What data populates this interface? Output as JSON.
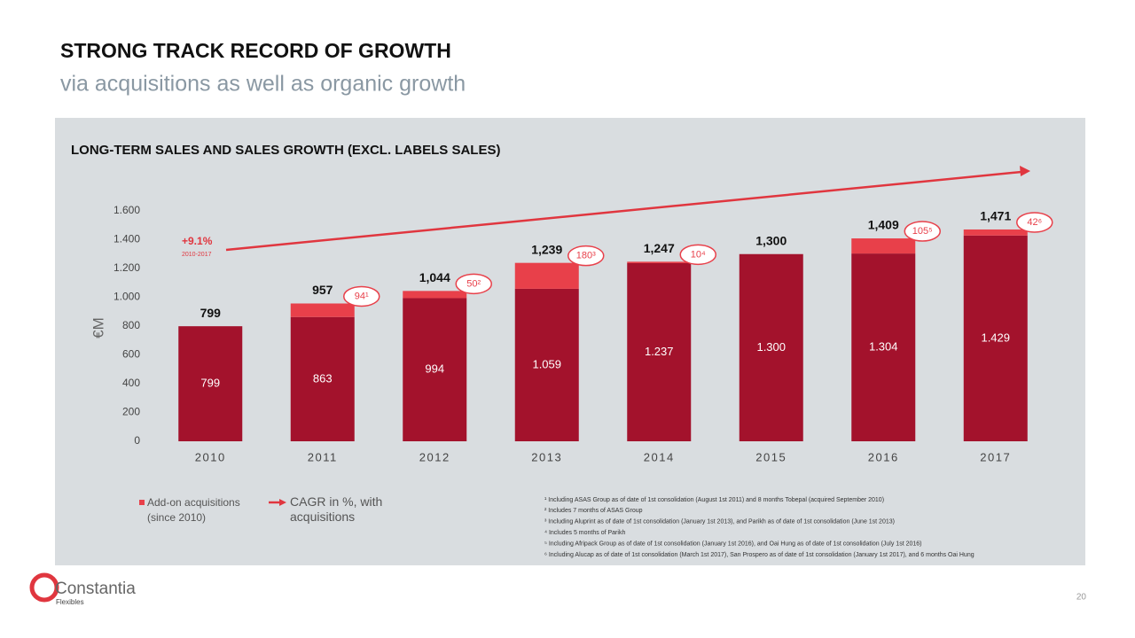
{
  "header": {
    "title": "STRONG TRACK RECORD OF GROWTH",
    "subtitle": "via acquisitions as well as organic growth"
  },
  "chart_data": {
    "type": "stacked-bar",
    "title": "LONG-TERM SALES AND SALES GROWTH (EXCL. LABELS SALES)",
    "y_label": "€M",
    "categories": [
      "2010",
      "2011",
      "2012",
      "2013",
      "2014",
      "2015",
      "2016",
      "2017"
    ],
    "series": [
      {
        "color": "#a3122c",
        "values": [
          799,
          863,
          994,
          1059,
          1237,
          1300,
          1304,
          1429
        ],
        "value_labels": [
          "799",
          "863",
          "994",
          "1.059",
          "1.237",
          "1.300",
          "1.304",
          "1.429"
        ]
      },
      {
        "name": "Add-on acquisitions (since 2010)",
        "color": "#e8404a",
        "values": [
          null,
          94,
          50,
          180,
          10,
          null,
          105,
          42
        ],
        "value_labels": [
          null,
          "94¹",
          "50²",
          "180³",
          "10⁴",
          null,
          "105⁵",
          "42⁶"
        ]
      }
    ],
    "totals": {
      "values": [
        799,
        957,
        1044,
        1239,
        1247,
        1300,
        1409,
        1471
      ],
      "value_labels": [
        "799",
        "957",
        "1,044",
        "1,239",
        "1,247",
        "1,300",
        "1,409",
        "1,471"
      ]
    },
    "ylim": [
      0,
      1600
    ],
    "yticks": [
      0,
      200,
      400,
      600,
      800,
      {
        "value": 1000,
        "label": "1.000"
      },
      {
        "value": 1200,
        "label": "1.200"
      },
      {
        "value": 1400,
        "label": "1.400"
      },
      {
        "value": 1600,
        "label": "1.600"
      }
    ],
    "cagr": {
      "label": "+9.1%",
      "period": "2010-2017",
      "legend": "CAGR in %, with acquisitions",
      "color": "#e0363f"
    },
    "footnotes": [
      "¹ Including ASAS Group as of date of 1st consolidation (August 1st 2011) and 8 months Tobepal (acquired September 2010)",
      "² Includes 7 months of ASAS Group",
      "³ Including Aluprint as of date of 1st consolidation (January 1st 2013), and Parikh as of date of 1st consolidation (June 1st 2013)",
      "⁴ Includes 5 months of Parikh",
      "⁵ Including Afripack Group as of date of 1st consolidation (January 1st 2016), and Oai Hung as of date of 1st consolidation (July 1st 2016)",
      "⁶ Including Alucap as of date of 1st consolidation (March 1st 2017), San Prospero as of date of 1st consolidation (January 1st 2017), and 6 months Oai Hung"
    ]
  },
  "footer": {
    "brand": "Constantia",
    "brand_sub": "Flexibles",
    "page": "20"
  }
}
